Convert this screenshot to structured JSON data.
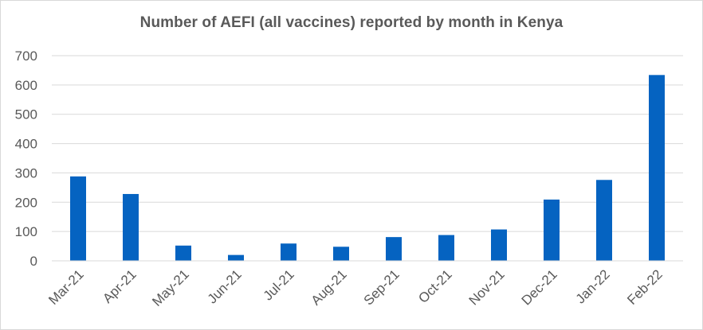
{
  "chart_data": {
    "type": "bar",
    "title": "Number of AEFI (all vaccines) reported by month in Kenya",
    "xlabel": "",
    "ylabel": "",
    "categories": [
      "Mar-21",
      "Apr-21",
      "May-21",
      "Jun-21",
      "Jul-21",
      "Aug-21",
      "Sep-21",
      "Oct-21",
      "Nov-21",
      "Dec-21",
      "Jan-22",
      "Feb-22"
    ],
    "values": [
      288,
      228,
      52,
      20,
      59,
      48,
      81,
      88,
      107,
      209,
      276,
      634
    ],
    "ylim": [
      0,
      700
    ],
    "yticks": [
      0,
      100,
      200,
      300,
      400,
      500,
      600,
      700
    ],
    "grid": true,
    "legend": "none",
    "colors": {
      "bar": "#0563c1",
      "grid": "#d9d9d9",
      "text": "#595959"
    }
  }
}
